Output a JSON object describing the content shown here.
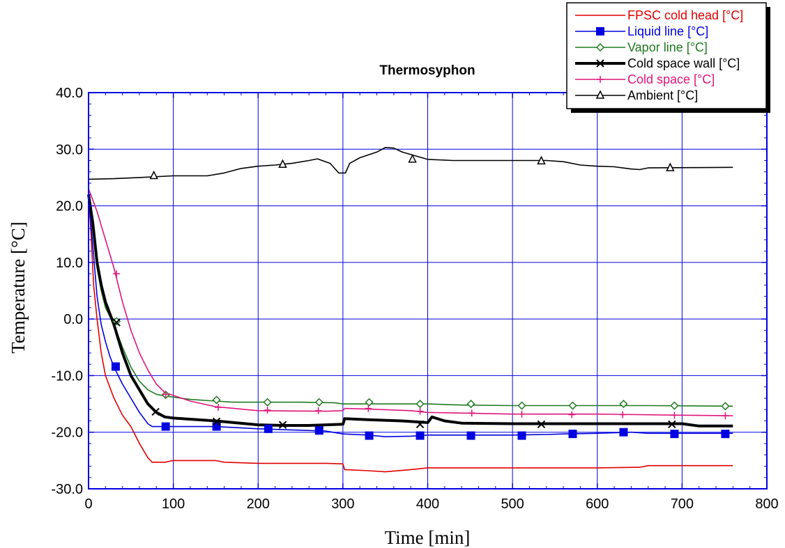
{
  "chart_data": {
    "type": "line",
    "title": "Thermosyphon",
    "xlabel": "Time [min]",
    "ylabel": "Temperature [°C]",
    "xlim": [
      0,
      800
    ],
    "ylim": [
      -30,
      40
    ],
    "xticks": [
      "0",
      "100",
      "200",
      "300",
      "400",
      "500",
      "600",
      "700",
      "800"
    ],
    "yticks": [
      "40.0",
      "30.0",
      "20.0",
      "10.0",
      "0.0",
      "-10.0",
      "-20.0",
      "-30.0"
    ],
    "grid": true,
    "legend_position": "top-right",
    "series": [
      {
        "name": "FPSC cold head [°C]",
        "color": "#e00000",
        "marker": "none",
        "points": [
          [
            0,
            22
          ],
          [
            3,
            15
          ],
          [
            6,
            6
          ],
          [
            10,
            0
          ],
          [
            15,
            -6
          ],
          [
            20,
            -10
          ],
          [
            30,
            -14
          ],
          [
            40,
            -17
          ],
          [
            50,
            -19
          ],
          [
            60,
            -22
          ],
          [
            70,
            -24.5
          ],
          [
            75,
            -25.3
          ],
          [
            90,
            -25.3
          ],
          [
            100,
            -25
          ],
          [
            150,
            -25
          ],
          [
            160,
            -25.3
          ],
          [
            200,
            -25.5
          ],
          [
            280,
            -25.5
          ],
          [
            300,
            -25.6
          ],
          [
            302,
            -26.6
          ],
          [
            330,
            -26.8
          ],
          [
            350,
            -27
          ],
          [
            380,
            -26.6
          ],
          [
            400,
            -26.3
          ],
          [
            600,
            -26.3
          ],
          [
            650,
            -26.2
          ],
          [
            660,
            -25.9
          ],
          [
            760,
            -25.9
          ]
        ]
      },
      {
        "name": "Liquid line [°C]",
        "color": "#0000e0",
        "marker": "square",
        "points": [
          [
            0,
            22
          ],
          [
            5,
            13
          ],
          [
            10,
            4
          ],
          [
            15,
            -1
          ],
          [
            20,
            -4
          ],
          [
            25,
            -6.5
          ],
          [
            30,
            -8.5
          ],
          [
            40,
            -11.5
          ],
          [
            50,
            -14
          ],
          [
            60,
            -16.5
          ],
          [
            70,
            -18.5
          ],
          [
            75,
            -19
          ],
          [
            100,
            -19
          ],
          [
            150,
            -19
          ],
          [
            200,
            -19.4
          ],
          [
            280,
            -19.8
          ],
          [
            300,
            -20.3
          ],
          [
            330,
            -20.5
          ],
          [
            350,
            -20.8
          ],
          [
            380,
            -20.7
          ],
          [
            400,
            -20.5
          ],
          [
            500,
            -20.5
          ],
          [
            540,
            -20.4
          ],
          [
            560,
            -20.3
          ],
          [
            600,
            -20.2
          ],
          [
            640,
            -20
          ],
          [
            660,
            -20.2
          ],
          [
            760,
            -20.2
          ]
        ],
        "markers": [
          [
            32,
            -8.4
          ],
          [
            91,
            -19
          ],
          [
            151,
            -19
          ],
          [
            212,
            -19.4
          ],
          [
            272,
            -19.7
          ],
          [
            331,
            -20.6
          ],
          [
            391,
            -20.6
          ],
          [
            451,
            -20.6
          ],
          [
            511,
            -20.6
          ],
          [
            571,
            -20.3
          ],
          [
            631,
            -20
          ],
          [
            691,
            -20.3
          ],
          [
            751,
            -20.3
          ]
        ]
      },
      {
        "name": "Vapor line [°C]",
        "color": "#207a20",
        "marker": "diamond",
        "points": [
          [
            0,
            22
          ],
          [
            5,
            16
          ],
          [
            10,
            9
          ],
          [
            15,
            5
          ],
          [
            20,
            2
          ],
          [
            25,
            0.5
          ],
          [
            30,
            -1
          ],
          [
            40,
            -5
          ],
          [
            50,
            -8.5
          ],
          [
            60,
            -11
          ],
          [
            70,
            -12.5
          ],
          [
            80,
            -13.3
          ],
          [
            90,
            -13.6
          ],
          [
            120,
            -14.2
          ],
          [
            150,
            -14.5
          ],
          [
            170,
            -14.7
          ],
          [
            250,
            -14.7
          ],
          [
            290,
            -14.8
          ],
          [
            300,
            -15
          ],
          [
            400,
            -15
          ],
          [
            440,
            -15.2
          ],
          [
            500,
            -15.3
          ],
          [
            600,
            -15.3
          ],
          [
            660,
            -15.3
          ],
          [
            760,
            -15.4
          ]
        ],
        "markers": [
          [
            33,
            -0.4
          ],
          [
            91,
            -13.4
          ],
          [
            151,
            -14.3
          ],
          [
            211,
            -14.7
          ],
          [
            272,
            -14.7
          ],
          [
            331,
            -14.7
          ],
          [
            391,
            -15
          ],
          [
            451,
            -15
          ],
          [
            511,
            -15.3
          ],
          [
            571,
            -15.3
          ],
          [
            631,
            -15
          ],
          [
            691,
            -15.3
          ],
          [
            751,
            -15.4
          ]
        ]
      },
      {
        "name": "Cold space wall [°C]",
        "color": "#000000",
        "marker": "x",
        "points": [
          [
            0,
            22
          ],
          [
            5,
            17
          ],
          [
            10,
            10
          ],
          [
            15,
            6
          ],
          [
            20,
            3
          ],
          [
            25,
            1
          ],
          [
            30,
            -1
          ],
          [
            40,
            -6
          ],
          [
            50,
            -10
          ],
          [
            60,
            -12.5
          ],
          [
            70,
            -15
          ],
          [
            80,
            -16.5
          ],
          [
            90,
            -17.3
          ],
          [
            100,
            -17.5
          ],
          [
            150,
            -18
          ],
          [
            200,
            -18.7
          ],
          [
            230,
            -18.8
          ],
          [
            260,
            -18.8
          ],
          [
            300,
            -18.6
          ],
          [
            302,
            -17.6
          ],
          [
            330,
            -17.8
          ],
          [
            370,
            -18
          ],
          [
            400,
            -18.3
          ],
          [
            405,
            -17.3
          ],
          [
            420,
            -18
          ],
          [
            440,
            -18.4
          ],
          [
            500,
            -18.5
          ],
          [
            700,
            -18.5
          ],
          [
            720,
            -18.9
          ],
          [
            760,
            -18.9
          ]
        ],
        "markers": [
          [
            33,
            -0.6
          ],
          [
            79,
            -16.4
          ],
          [
            151,
            -18.1
          ],
          [
            229,
            -18.7
          ],
          [
            391,
            -18.6
          ],
          [
            534,
            -18.6
          ],
          [
            688,
            -18.6
          ]
        ]
      },
      {
        "name": "Cold space [°C]",
        "color": "#e0157a",
        "marker": "plus",
        "points": [
          [
            0,
            23
          ],
          [
            10,
            19
          ],
          [
            20,
            14
          ],
          [
            30,
            9
          ],
          [
            40,
            3
          ],
          [
            50,
            -2
          ],
          [
            60,
            -6
          ],
          [
            70,
            -9
          ],
          [
            80,
            -11.5
          ],
          [
            90,
            -13
          ],
          [
            100,
            -13.5
          ],
          [
            120,
            -14.5
          ],
          [
            150,
            -15.5
          ],
          [
            200,
            -16.2
          ],
          [
            280,
            -16.3
          ],
          [
            300,
            -16.2
          ],
          [
            302,
            -15.8
          ],
          [
            330,
            -15.9
          ],
          [
            380,
            -16.2
          ],
          [
            400,
            -16.5
          ],
          [
            500,
            -16.8
          ],
          [
            600,
            -16.8
          ],
          [
            700,
            -17
          ],
          [
            760,
            -17.1
          ]
        ],
        "markers": [
          [
            33,
            8
          ],
          [
            91,
            -13.3
          ],
          [
            153,
            -15.6
          ],
          [
            211,
            -16.1
          ],
          [
            271,
            -16.2
          ],
          [
            330,
            -15.8
          ],
          [
            391,
            -16.3
          ],
          [
            452,
            -16.6
          ],
          [
            511,
            -16.8
          ],
          [
            570,
            -16.9
          ],
          [
            630,
            -16.9
          ],
          [
            691,
            -17
          ],
          [
            751,
            -17.1
          ]
        ]
      },
      {
        "name": "Ambient [°C]",
        "color": "#000000",
        "marker": "triangle",
        "points": [
          [
            0,
            24.7
          ],
          [
            30,
            24.8
          ],
          [
            60,
            25
          ],
          [
            100,
            25.3
          ],
          [
            140,
            25.3
          ],
          [
            160,
            25.8
          ],
          [
            180,
            26.6
          ],
          [
            200,
            27
          ],
          [
            220,
            27.2
          ],
          [
            240,
            27.5
          ],
          [
            260,
            28
          ],
          [
            270,
            28.3
          ],
          [
            285,
            27.5
          ],
          [
            295,
            25.8
          ],
          [
            303,
            25.8
          ],
          [
            308,
            27.5
          ],
          [
            320,
            28.5
          ],
          [
            340,
            29.5
          ],
          [
            350,
            30.3
          ],
          [
            360,
            30.2
          ],
          [
            370,
            29.5
          ],
          [
            400,
            28.2
          ],
          [
            430,
            28
          ],
          [
            540,
            28
          ],
          [
            560,
            27.8
          ],
          [
            580,
            27.2
          ],
          [
            600,
            27
          ],
          [
            620,
            26.9
          ],
          [
            640,
            26.5
          ],
          [
            650,
            26.4
          ],
          [
            660,
            26.7
          ],
          [
            760,
            26.8
          ]
        ],
        "markers": [
          [
            77,
            25.3
          ],
          [
            229,
            27.3
          ],
          [
            382,
            28.2
          ],
          [
            534,
            27.9
          ],
          [
            686,
            26.7
          ]
        ]
      }
    ]
  }
}
